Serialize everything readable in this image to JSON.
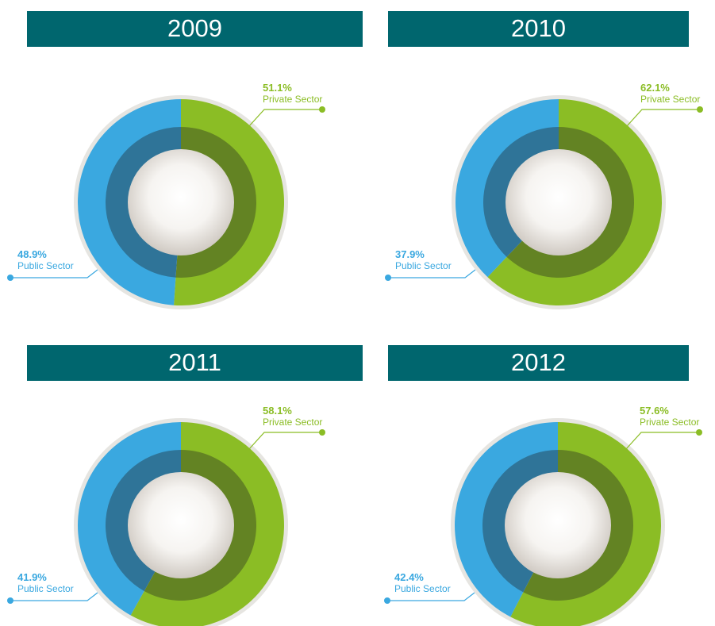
{
  "chart_data": [
    {
      "type": "donut",
      "title": "2009",
      "categories": [
        "Private Sector",
        "Public Sector"
      ],
      "values": [
        51.1,
        48.9
      ],
      "value_labels": [
        "51.1%",
        "48.9%"
      ],
      "colors": [
        "#8bbd25",
        "#3aa8e0"
      ]
    },
    {
      "type": "donut",
      "title": "2010",
      "categories": [
        "Private Sector",
        "Public Sector"
      ],
      "values": [
        62.1,
        37.9
      ],
      "value_labels": [
        "62.1%",
        "37.9%"
      ],
      "colors": [
        "#8bbd25",
        "#3aa8e0"
      ]
    },
    {
      "type": "donut",
      "title": "2011",
      "categories": [
        "Private Sector",
        "Public Sector"
      ],
      "values": [
        58.1,
        41.9
      ],
      "value_labels": [
        "58.1%",
        "41.9%"
      ],
      "colors": [
        "#8bbd25",
        "#3aa8e0"
      ]
    },
    {
      "type": "donut",
      "title": "2012",
      "categories": [
        "Private Sector",
        "Public Sector"
      ],
      "values": [
        57.6,
        42.4
      ],
      "value_labels": [
        "57.6%",
        "42.4%"
      ],
      "colors": [
        "#8bbd25",
        "#3aa8e0"
      ]
    }
  ]
}
